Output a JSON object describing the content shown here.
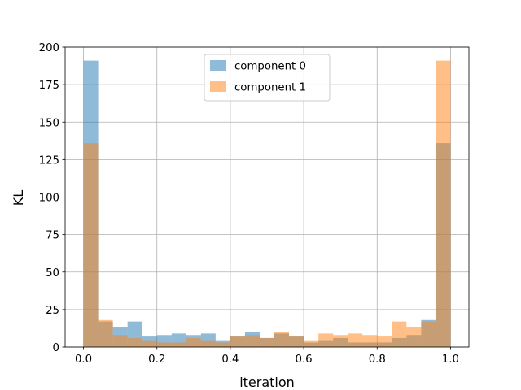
{
  "chart_data": {
    "type": "histogram",
    "xlabel": "iteration",
    "ylabel": "KL",
    "xlim": [
      -0.05,
      1.05
    ],
    "ylim": [
      0,
      200
    ],
    "xticks": [
      "0.0",
      "0.2",
      "0.4",
      "0.6",
      "0.8",
      "1.0"
    ],
    "xtick_values": [
      0.0,
      0.2,
      0.4,
      0.6,
      0.8,
      1.0
    ],
    "yticks": [
      "0",
      "25",
      "50",
      "75",
      "100",
      "125",
      "150",
      "175",
      "200"
    ],
    "ytick_values": [
      0,
      25,
      50,
      75,
      100,
      125,
      150,
      175,
      200
    ],
    "grid": true,
    "legend_position": "top-center",
    "bin_edges": [
      0.0,
      0.04,
      0.08,
      0.12,
      0.16,
      0.2,
      0.24,
      0.28,
      0.32,
      0.36,
      0.4,
      0.44,
      0.48,
      0.52,
      0.56,
      0.6,
      0.64,
      0.68,
      0.72,
      0.76,
      0.8,
      0.84,
      0.88,
      0.92,
      0.96,
      1.0
    ],
    "series": [
      {
        "name": "component 0",
        "color": "#1f77b4",
        "values": [
          191,
          17,
          13,
          17,
          7,
          8,
          9,
          8,
          9,
          4,
          7,
          10,
          6,
          9,
          7,
          3,
          4,
          6,
          3,
          3,
          3,
          6,
          8,
          18,
          136
        ]
      },
      {
        "name": "component 1",
        "color": "#ff7f0e",
        "values": [
          136,
          18,
          8,
          6,
          4,
          3,
          3,
          6,
          4,
          3,
          7,
          8,
          6,
          10,
          7,
          4,
          9,
          8,
          9,
          8,
          7,
          17,
          13,
          17,
          191
        ]
      }
    ],
    "opacity": 0.5
  }
}
